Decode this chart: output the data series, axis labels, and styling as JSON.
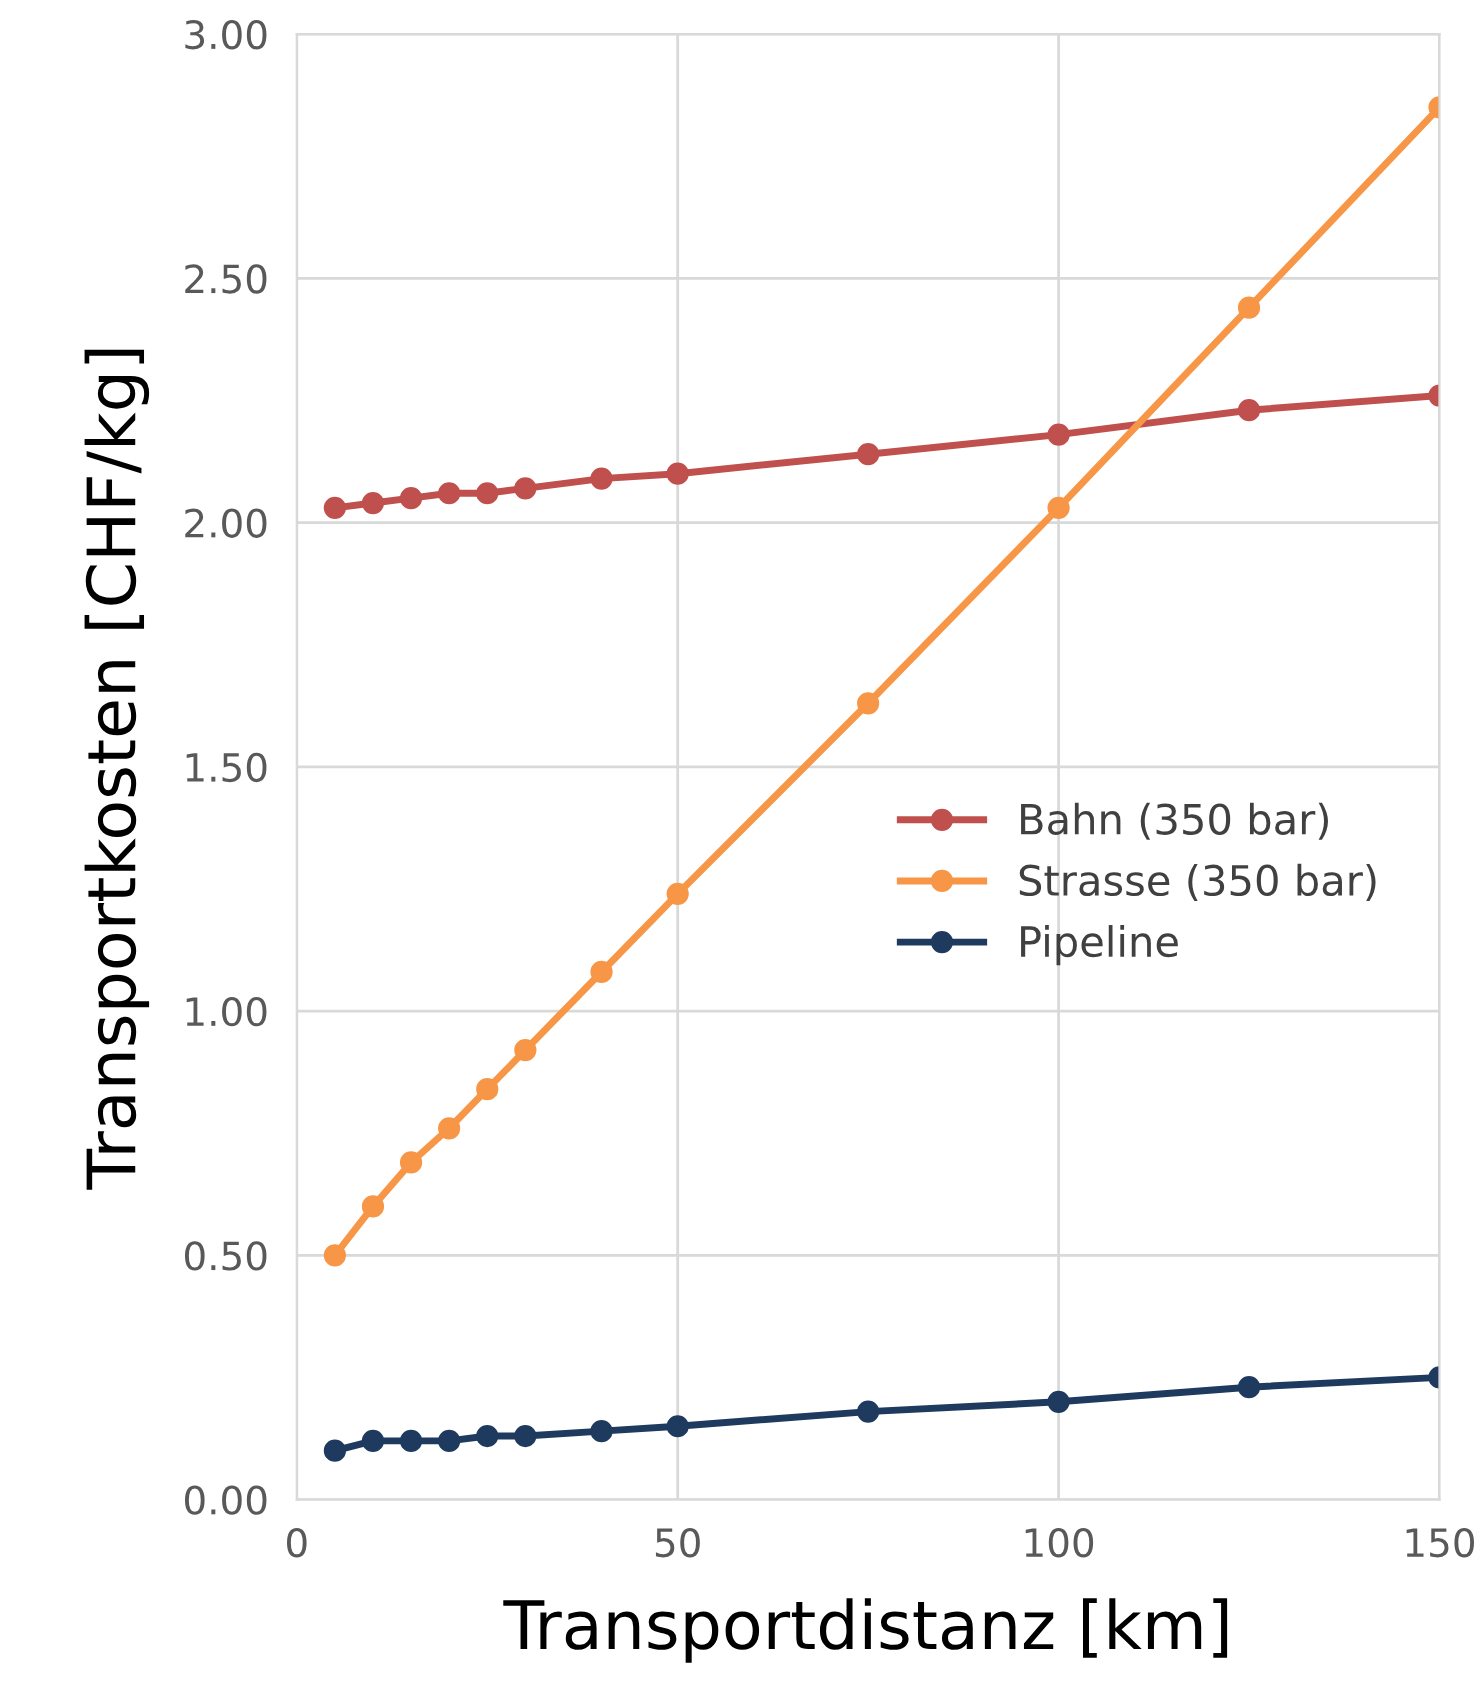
{
  "chart_data": {
    "type": "line",
    "xlabel": "Transportdistanz [km]",
    "ylabel": "Transportkosten [CHF/kg]",
    "x": [
      5,
      10,
      15,
      20,
      25,
      30,
      40,
      50,
      75,
      100,
      125,
      150
    ],
    "series": [
      {
        "name": "Bahn (350 bar)",
        "color": "#c0504d",
        "values": [
          2.03,
          2.04,
          2.05,
          2.06,
          2.06,
          2.07,
          2.09,
          2.1,
          2.14,
          2.18,
          2.23,
          2.26
        ]
      },
      {
        "name": "Strasse (350 bar)",
        "color": "#f79646",
        "values": [
          0.5,
          0.6,
          0.69,
          0.76,
          0.84,
          0.92,
          1.08,
          1.24,
          1.63,
          2.03,
          2.44,
          2.85
        ]
      },
      {
        "name": "Pipeline",
        "color": "#1f3a5f",
        "values": [
          0.1,
          0.12,
          0.12,
          0.12,
          0.13,
          0.13,
          0.14,
          0.15,
          0.18,
          0.2,
          0.23,
          0.25
        ]
      }
    ],
    "xlim": [
      0,
      150
    ],
    "xticks": [
      0,
      50,
      100,
      150
    ],
    "ylim": [
      0,
      3
    ],
    "yticks": [
      {
        "value": 0,
        "label": "0.00"
      },
      {
        "value": 0.5,
        "label": "0.50"
      },
      {
        "value": 1,
        "label": "1.00"
      },
      {
        "value": 1.5,
        "label": "1.50"
      },
      {
        "value": 2,
        "label": "2.00"
      },
      {
        "value": 2.5,
        "label": "2.50"
      },
      {
        "value": 3,
        "label": "3.00"
      }
    ],
    "grid": true,
    "legend": "center right",
    "marker": "circle",
    "line_style": "solid"
  }
}
